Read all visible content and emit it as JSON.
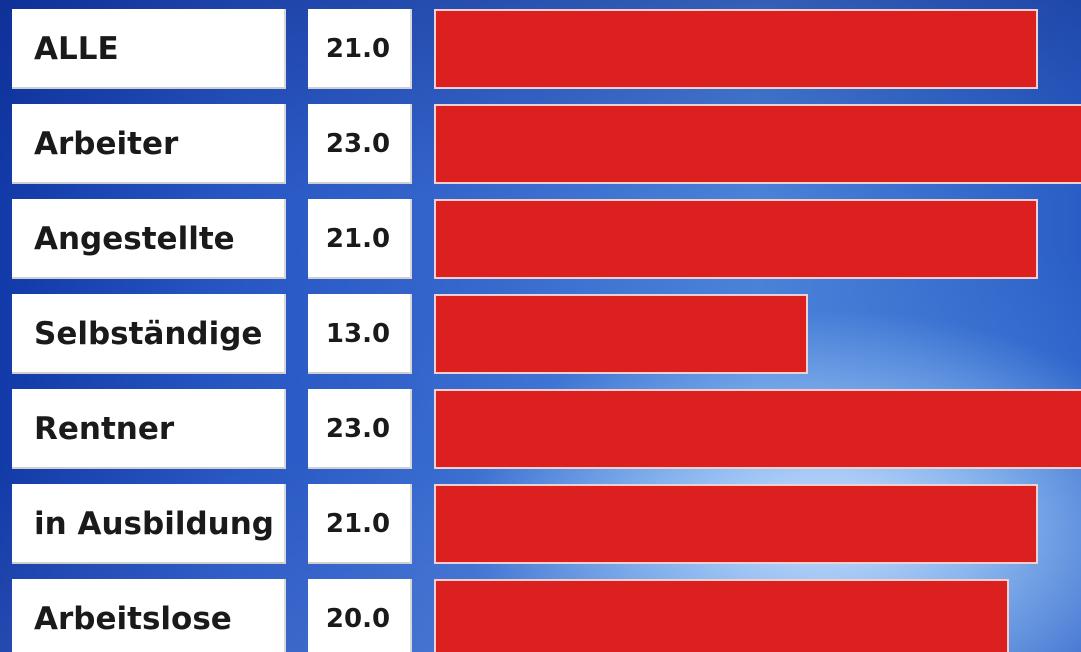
{
  "chart_data": {
    "type": "bar",
    "orientation": "horizontal",
    "categories": [
      "ALLE",
      "Arbeiter",
      "Angestellte",
      "Selbständige",
      "Rentner",
      "in Ausbildung",
      "Arbeitslose"
    ],
    "values": [
      21.0,
      23.0,
      21.0,
      13.0,
      23.0,
      21.0,
      20.0
    ],
    "value_labels": [
      "21.0",
      "23.0",
      "21.0",
      "13.0",
      "23.0",
      "21.0",
      "20.0"
    ],
    "xlim": [
      0,
      22.5
    ],
    "bar_color": "#dc2020",
    "grid": false,
    "legend": "none"
  },
  "colors": {
    "background": "#2a5ec6",
    "label_box": "#ffffff",
    "bar": "#dc2020"
  }
}
